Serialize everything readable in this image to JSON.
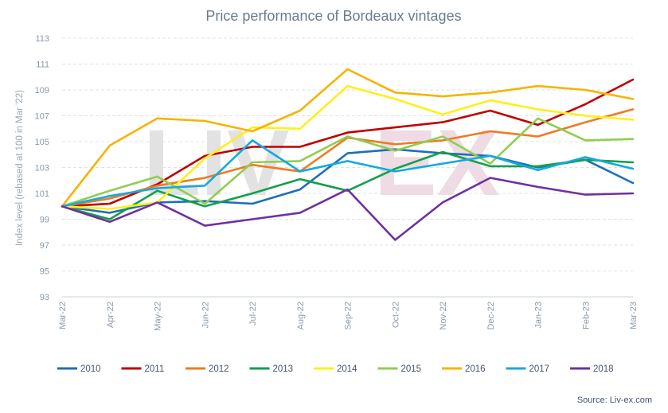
{
  "chart_data": {
    "type": "line",
    "title": "Price performance of Bordeaux vintages",
    "ylabel": "Index level (rebased at 100 in Mar '22)",
    "xlabel": "",
    "ylim": [
      93,
      113
    ],
    "yticks": [
      93,
      95,
      97,
      99,
      101,
      103,
      105,
      107,
      109,
      111,
      113
    ],
    "grid": "horizontal dashed",
    "legend": "bottom",
    "source": "Source: Liv-ex.com",
    "watermark": "LIV-EX",
    "x": [
      "Mar-22",
      "Apr-22",
      "May-22",
      "Jun-22",
      "Jul-22",
      "Aug-22",
      "Sep-22",
      "Oct-22",
      "Nov-22",
      "Dec-22",
      "Jan-23",
      "Feb-23",
      "Mar-23"
    ],
    "series": [
      {
        "name": "2010",
        "color": "#1f6fb5",
        "values": [
          100,
          99.5,
          100.3,
          100.4,
          100.2,
          101.3,
          104.1,
          104.4,
          104.1,
          103.9,
          103.0,
          103.6,
          101.8
        ]
      },
      {
        "name": "2011",
        "color": "#c00000",
        "values": [
          100,
          100.2,
          101.7,
          103.9,
          104.6,
          104.6,
          105.7,
          106.1,
          106.5,
          107.4,
          106.3,
          107.9,
          109.8
        ]
      },
      {
        "name": "2012",
        "color": "#ee7b22",
        "values": [
          100,
          100.6,
          101.6,
          102.2,
          103.2,
          102.7,
          105.3,
          104.8,
          105.1,
          105.8,
          105.4,
          106.5,
          107.5
        ]
      },
      {
        "name": "2013",
        "color": "#14a04a",
        "values": [
          100,
          99.0,
          101.2,
          100.0,
          101.0,
          102.1,
          101.2,
          102.9,
          104.2,
          103.1,
          103.1,
          103.6,
          103.4
        ]
      },
      {
        "name": "2014",
        "color": "#ffef1a",
        "values": [
          100,
          99.8,
          100.3,
          103.7,
          106.1,
          106.0,
          109.3,
          108.3,
          107.1,
          108.2,
          107.5,
          107.0,
          106.7
        ]
      },
      {
        "name": "2015",
        "color": "#8fce4f",
        "values": [
          100,
          101.2,
          102.3,
          100.2,
          103.4,
          103.5,
          105.4,
          104.3,
          105.4,
          103.3,
          106.8,
          105.1,
          105.2
        ]
      },
      {
        "name": "2016",
        "color": "#f5b400",
        "values": [
          100,
          104.7,
          106.8,
          106.6,
          105.8,
          107.4,
          110.6,
          108.8,
          108.5,
          108.8,
          109.3,
          109.0,
          108.3
        ]
      },
      {
        "name": "2017",
        "color": "#14a9e0",
        "values": [
          100,
          100.8,
          101.4,
          101.6,
          105.1,
          102.7,
          103.5,
          102.7,
          103.3,
          103.9,
          102.8,
          103.8,
          102.9
        ]
      },
      {
        "name": "2018",
        "color": "#7030a0",
        "values": [
          100,
          98.8,
          100.3,
          98.5,
          99.0,
          99.5,
          101.3,
          97.4,
          100.3,
          102.2,
          101.5,
          100.9,
          101.0
        ]
      }
    ]
  }
}
